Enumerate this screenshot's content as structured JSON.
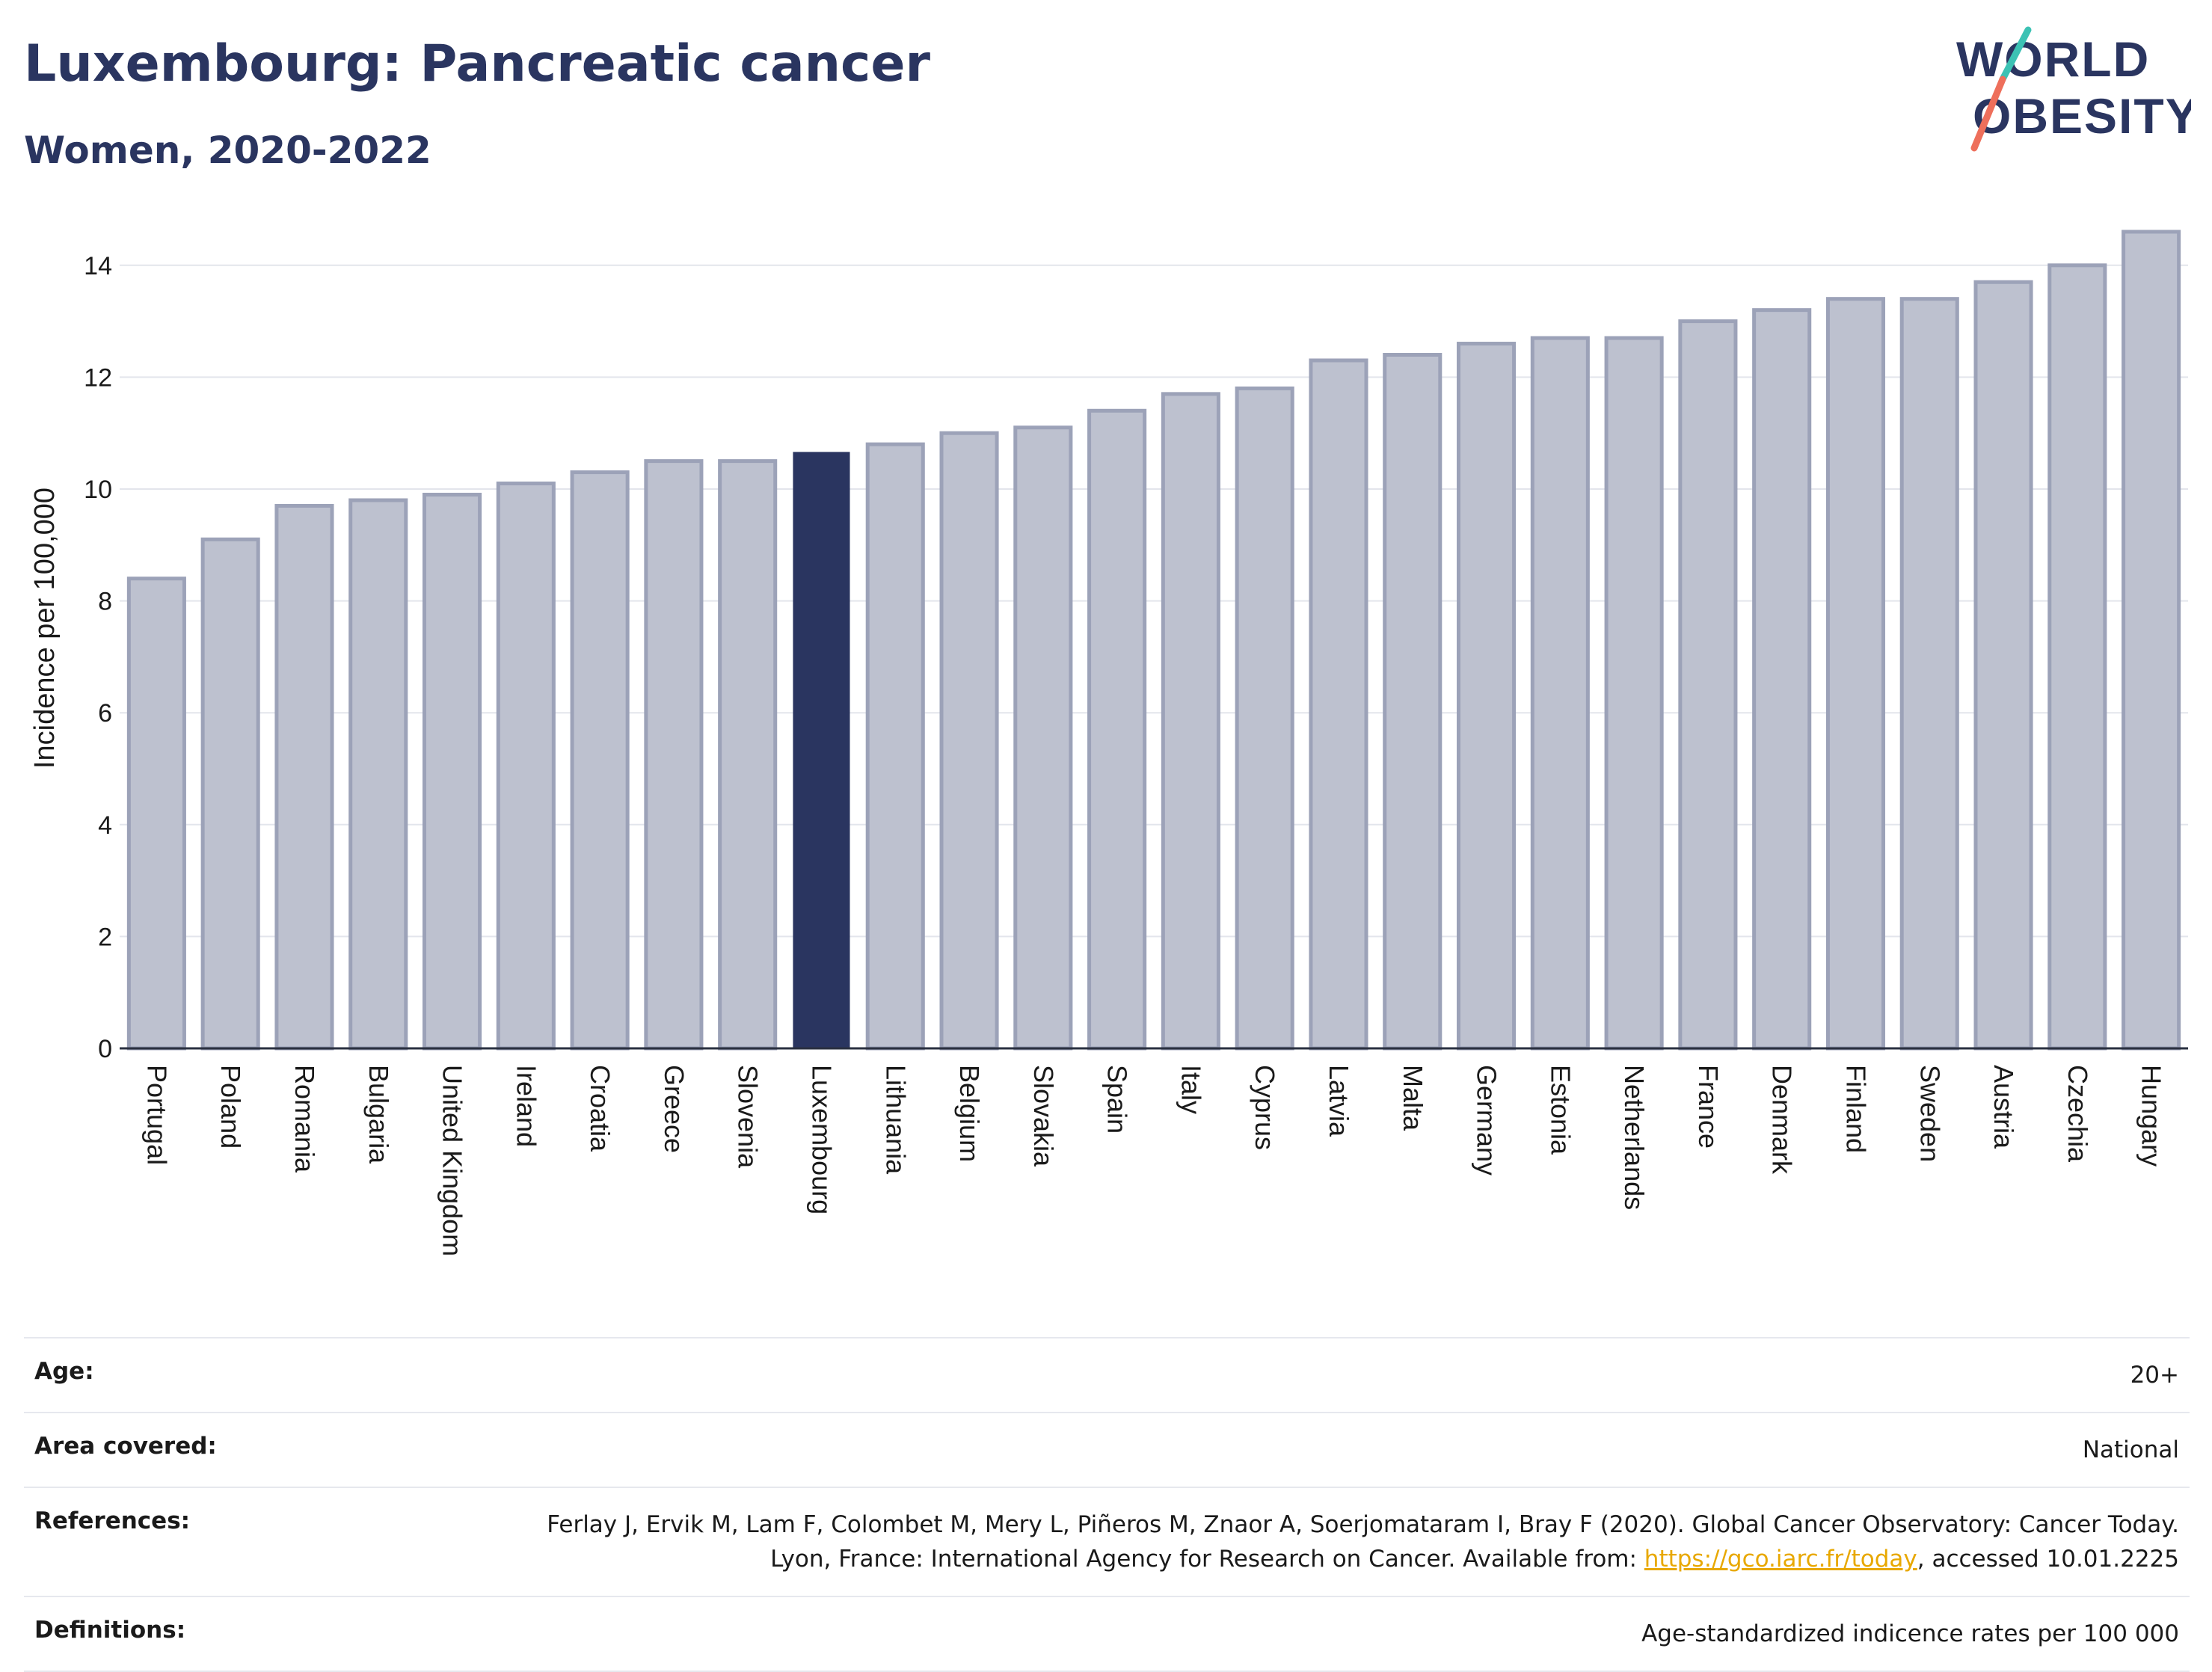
{
  "header": {
    "title": "Luxembourg: Pancreatic cancer",
    "subtitle": "Women, 2020-2022"
  },
  "logo": {
    "line1": "WORLD",
    "line2": "OBESITY"
  },
  "chart_data": {
    "type": "bar",
    "ylabel": "Incidence per 100,000",
    "ylim": [
      0,
      15
    ],
    "yticks": [
      0,
      2,
      4,
      6,
      8,
      10,
      12,
      14
    ],
    "grid": true,
    "highlight": "Luxembourg",
    "colors": {
      "bar": "#bdc1cf",
      "bar_edge": "#9ca2b8",
      "highlight": "#2a3560"
    },
    "categories": [
      "Portugal",
      "Poland",
      "Romania",
      "Bulgaria",
      "United Kingdom",
      "Ireland",
      "Croatia",
      "Greece",
      "Slovenia",
      "Luxembourg",
      "Lithuania",
      "Belgium",
      "Slovakia",
      "Spain",
      "Italy",
      "Cyprus",
      "Latvia",
      "Malta",
      "Germany",
      "Estonia",
      "Netherlands",
      "France",
      "Denmark",
      "Finland",
      "Sweden",
      "Austria",
      "Czechia",
      "Hungary"
    ],
    "values": [
      8.4,
      9.1,
      9.7,
      9.8,
      9.9,
      10.1,
      10.3,
      10.5,
      10.5,
      10.65,
      10.8,
      11.0,
      11.1,
      11.4,
      11.7,
      11.8,
      12.3,
      12.4,
      12.6,
      12.7,
      12.7,
      13.0,
      13.2,
      13.4,
      13.4,
      13.7,
      14.0,
      14.6
    ]
  },
  "meta": {
    "age_label": "Age:",
    "age_value": "20+",
    "area_label": "Area covered:",
    "area_value": "National",
    "references_label": "References:",
    "references_text_1": "Ferlay J, Ervik M, Lam F, Colombet M, Mery L, Piñeros M, Znaor A, Soerjomataram I, Bray F (2020). Global Cancer Observatory: Cancer Today. Lyon, France: International Agency for Research on Cancer. Available from: ",
    "references_link": "https://gco.iarc.fr/today",
    "references_text_2": ", accessed 10.01.2225",
    "definitions_label": "Definitions:",
    "definitions_value": "Age-standardized indicence rates per 100 000"
  }
}
